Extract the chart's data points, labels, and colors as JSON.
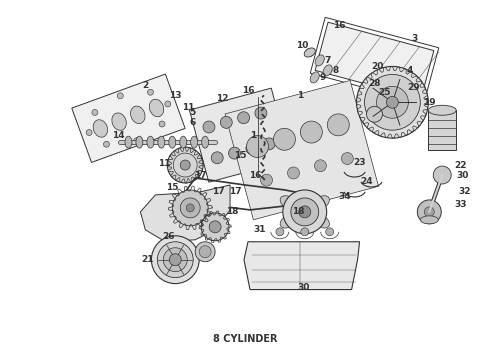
{
  "caption": "8 CYLINDER",
  "bg": "#ffffff",
  "lc": "#333333",
  "fig_w": 4.9,
  "fig_h": 3.6,
  "dpi": 100
}
